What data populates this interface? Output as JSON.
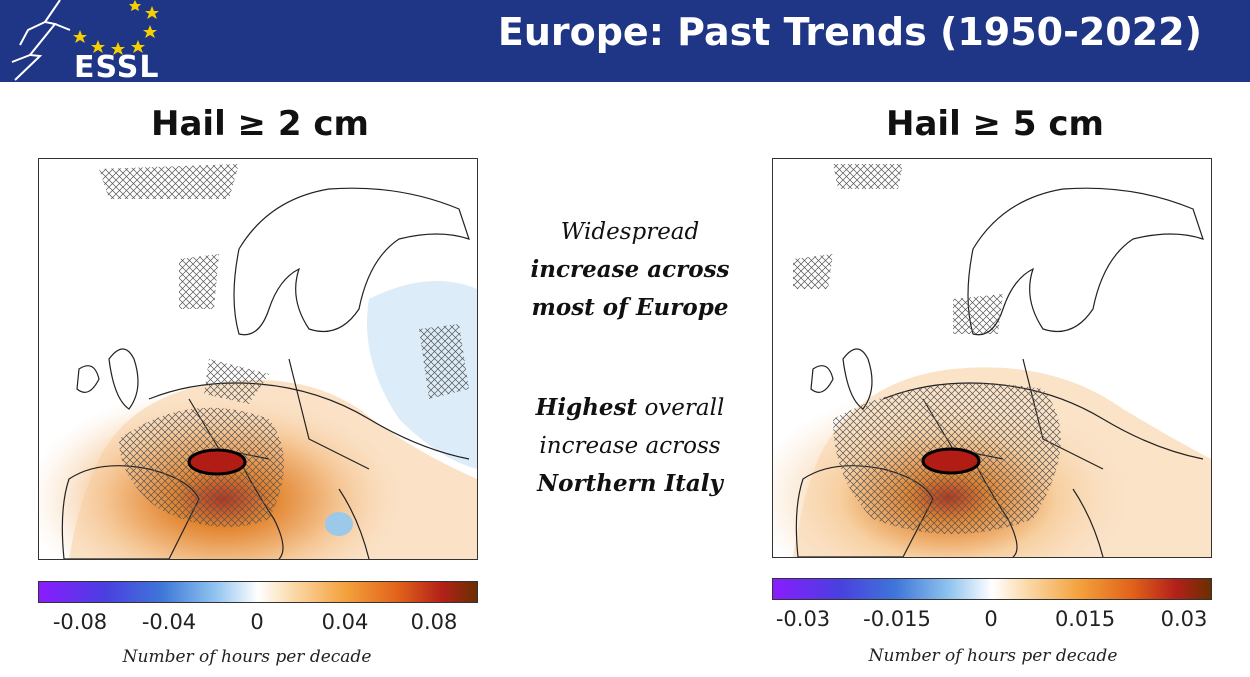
{
  "header": {
    "title": "Europe: Past Trends (1950-2022)",
    "logo_text": "ESSL",
    "background": "#1f3585"
  },
  "panels": [
    {
      "title": "Hail ≥ 2 cm",
      "colorbar": {
        "ticks": [
          "-0.08",
          "-0.04",
          "0",
          "0.04",
          "0.08"
        ],
        "label": "Number of hours per decade",
        "range": [
          -0.1,
          0.1
        ]
      }
    },
    {
      "title": "Hail ≥ 5 cm",
      "colorbar": {
        "ticks": [
          "-0.03",
          "-0.015",
          "0",
          "0.015",
          "0.03"
        ],
        "label": "Number of hours per decade",
        "range": [
          -0.035,
          0.035
        ]
      }
    }
  ],
  "notes": {
    "block1_line1": "Widespread",
    "block1_line2": "increase across",
    "block1_line3": "most of Europe",
    "block2_bold": "Highest",
    "block2_rest": " overall",
    "block2_line2": "increase across",
    "block2_line3": "Northern Italy"
  },
  "colors": {
    "negative_end": "#8a1cff",
    "positive_end": "#6b2f00",
    "hatch": "#555555",
    "land_outline": "#222222"
  }
}
